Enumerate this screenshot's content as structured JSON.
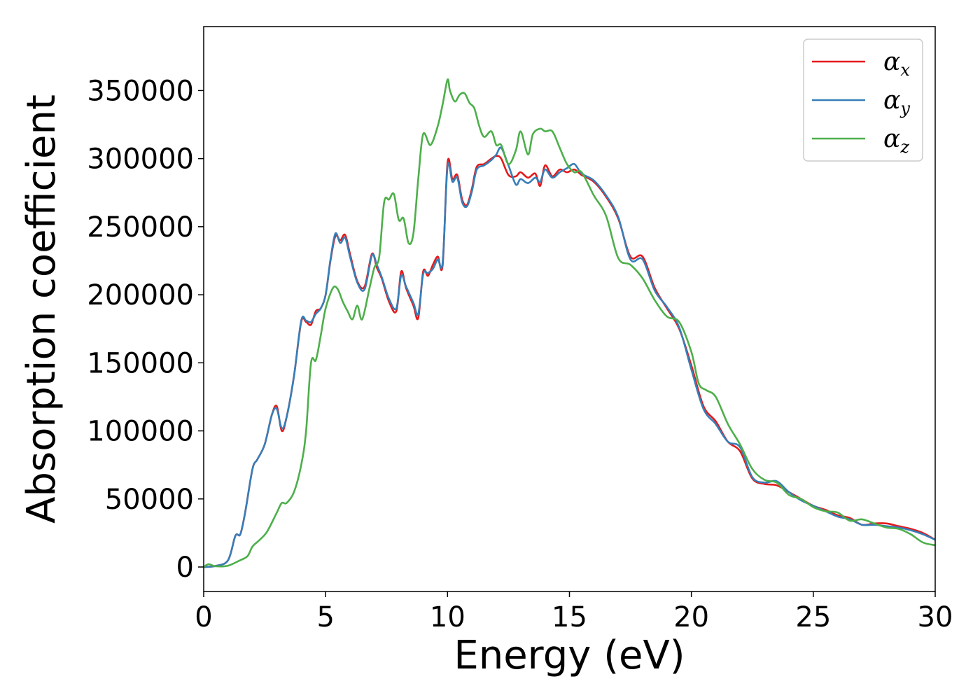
{
  "chart_data": {
    "type": "line",
    "title": "",
    "xlabel": "Energy (eV)",
    "ylabel": "Absorption coefficient",
    "xlim": [
      0,
      30
    ],
    "ylim": [
      -18000,
      397000
    ],
    "xticks": [
      0,
      5,
      10,
      15,
      20,
      25,
      30
    ],
    "yticks": [
      0,
      50000,
      100000,
      150000,
      200000,
      250000,
      300000,
      350000
    ],
    "grid": false,
    "legend_position": "top-right",
    "series": [
      {
        "name": "αx",
        "symbol": "α",
        "subscript": "x",
        "color": "#e41a1c",
        "x": [
          0,
          0.5,
          1.0,
          1.3,
          1.5,
          1.7,
          2.0,
          2.2,
          2.5,
          2.8,
          3.0,
          3.2,
          3.4,
          3.7,
          4.0,
          4.2,
          4.4,
          4.6,
          4.8,
          5.0,
          5.2,
          5.4,
          5.6,
          5.8,
          6.0,
          6.3,
          6.6,
          6.9,
          7.1,
          7.3,
          7.6,
          7.9,
          8.1,
          8.3,
          8.6,
          8.8,
          9.0,
          9.2,
          9.4,
          9.6,
          9.8,
          10.0,
          10.2,
          10.4,
          10.6,
          10.8,
          11.0,
          11.2,
          11.5,
          11.8,
          12.0,
          12.2,
          12.5,
          12.8,
          13.0,
          13.3,
          13.6,
          13.8,
          14.0,
          14.3,
          14.6,
          14.9,
          15.2,
          15.5,
          16.0,
          16.5,
          17.0,
          17.5,
          18.0,
          18.5,
          19.0,
          19.5,
          20.0,
          20.5,
          21.0,
          21.5,
          22.0,
          22.5,
          23.0,
          23.5,
          24.0,
          24.5,
          25.0,
          25.5,
          26.0,
          26.5,
          27.0,
          27.5,
          28.0,
          28.5,
          29.0,
          29.5,
          30.0
        ],
        "values": [
          0,
          800,
          5000,
          23000,
          24000,
          40000,
          72000,
          79000,
          90000,
          112000,
          118000,
          100000,
          110000,
          140000,
          180000,
          180000,
          178000,
          188000,
          190000,
          200000,
          225000,
          243000,
          240000,
          244000,
          230000,
          210000,
          206000,
          230000,
          220000,
          212000,
          195000,
          188000,
          217000,
          205000,
          192000,
          183000,
          217000,
          214000,
          222000,
          228000,
          222000,
          297000,
          285000,
          288000,
          270000,
          266000,
          278000,
          294000,
          296000,
          300000,
          302000,
          300000,
          288000,
          287000,
          290000,
          286000,
          289000,
          280000,
          295000,
          287000,
          292000,
          290000,
          292000,
          288000,
          283000,
          272000,
          256000,
          228000,
          228000,
          205000,
          190000,
          175000,
          148000,
          118000,
          107000,
          92000,
          85000,
          65000,
          61000,
          60000,
          55000,
          50000,
          45000,
          42000,
          38000,
          36000,
          31000,
          32000,
          32000,
          30000,
          28000,
          25000,
          20000
        ]
      },
      {
        "name": "αy",
        "symbol": "α",
        "subscript": "y",
        "color": "#377eb8",
        "x": [
          0,
          0.5,
          1.0,
          1.3,
          1.5,
          1.7,
          2.0,
          2.2,
          2.5,
          2.8,
          3.0,
          3.2,
          3.4,
          3.7,
          4.0,
          4.2,
          4.4,
          4.6,
          4.8,
          5.0,
          5.2,
          5.4,
          5.6,
          5.8,
          6.0,
          6.3,
          6.6,
          6.9,
          7.1,
          7.3,
          7.6,
          7.9,
          8.1,
          8.3,
          8.6,
          8.8,
          9.0,
          9.2,
          9.4,
          9.6,
          9.8,
          10.0,
          10.2,
          10.4,
          10.6,
          10.8,
          11.0,
          11.2,
          11.5,
          11.8,
          12.0,
          12.2,
          12.5,
          12.8,
          13.0,
          13.3,
          13.6,
          13.8,
          14.0,
          14.3,
          14.6,
          14.9,
          15.2,
          15.5,
          16.0,
          16.5,
          17.0,
          17.5,
          18.0,
          18.5,
          19.0,
          19.5,
          20.0,
          20.5,
          21.0,
          21.5,
          22.0,
          22.5,
          23.0,
          23.5,
          24.0,
          24.5,
          25.0,
          25.5,
          26.0,
          26.5,
          27.0,
          27.5,
          28.0,
          28.5,
          29.0,
          29.5,
          30.0
        ],
        "values": [
          0,
          800,
          5000,
          23000,
          24000,
          40000,
          72000,
          79000,
          90000,
          112000,
          116000,
          102000,
          110000,
          140000,
          181000,
          181000,
          180000,
          186000,
          190000,
          200000,
          226000,
          245000,
          238000,
          242000,
          228000,
          209000,
          204000,
          229000,
          222000,
          213000,
          197000,
          190000,
          214000,
          206000,
          194000,
          186000,
          215000,
          216000,
          219000,
          226000,
          224000,
          294000,
          283000,
          286000,
          268000,
          265000,
          276000,
          292000,
          295000,
          299000,
          303000,
          308000,
          295000,
          281000,
          285000,
          282000,
          286000,
          283000,
          292000,
          286000,
          290000,
          293000,
          296000,
          289000,
          284000,
          273000,
          257000,
          226000,
          226000,
          203000,
          191000,
          176000,
          145000,
          116000,
          105000,
          92000,
          88000,
          66000,
          62000,
          63000,
          55000,
          49000,
          45000,
          41000,
          37000,
          35000,
          31000,
          31000,
          30000,
          29000,
          27000,
          24000,
          20000
        ]
      },
      {
        "name": "αz",
        "symbol": "α",
        "subscript": "z",
        "color": "#4daf4a",
        "x": [
          0,
          0.2,
          0.5,
          1.0,
          1.5,
          1.8,
          2.0,
          2.3,
          2.6,
          3.0,
          3.2,
          3.4,
          3.7,
          4.0,
          4.2,
          4.4,
          4.6,
          4.8,
          5.0,
          5.3,
          5.5,
          5.7,
          5.9,
          6.1,
          6.3,
          6.5,
          6.8,
          7.0,
          7.2,
          7.4,
          7.6,
          7.8,
          8.0,
          8.2,
          8.4,
          8.6,
          8.8,
          9.0,
          9.3,
          9.6,
          9.8,
          10.0,
          10.1,
          10.3,
          10.5,
          10.7,
          10.9,
          11.1,
          11.3,
          11.5,
          11.8,
          12.0,
          12.2,
          12.5,
          12.8,
          13.0,
          13.3,
          13.5,
          13.8,
          14.0,
          14.3,
          14.6,
          14.9,
          15.2,
          15.5,
          16.0,
          16.5,
          17.0,
          17.5,
          18.0,
          18.5,
          19.0,
          19.5,
          20.0,
          20.3,
          20.6,
          21.0,
          21.5,
          22.0,
          22.5,
          23.0,
          23.5,
          24.0,
          24.5,
          25.0,
          25.5,
          26.0,
          26.5,
          27.0,
          27.5,
          28.0,
          28.5,
          29.0,
          29.5,
          30.0
        ],
        "values": [
          0,
          2000,
          500,
          1000,
          5000,
          8000,
          15000,
          20000,
          26000,
          40000,
          47000,
          47000,
          55000,
          75000,
          100000,
          150000,
          152000,
          170000,
          190000,
          205000,
          204000,
          195000,
          188000,
          182000,
          192000,
          182000,
          205000,
          220000,
          228000,
          268000,
          270000,
          274000,
          255000,
          256000,
          238000,
          245000,
          285000,
          318000,
          310000,
          324000,
          340000,
          358000,
          350000,
          342000,
          347000,
          348000,
          341000,
          337000,
          324000,
          316000,
          320000,
          310000,
          310000,
          296000,
          306000,
          320000,
          303000,
          318000,
          322000,
          320000,
          320000,
          308000,
          296000,
          290000,
          290000,
          273000,
          258000,
          227000,
          222000,
          212000,
          196000,
          184000,
          180000,
          158000,
          135000,
          130000,
          125000,
          105000,
          90000,
          72000,
          64000,
          62000,
          53000,
          50000,
          44000,
          41000,
          40000,
          34000,
          35000,
          32000,
          29000,
          28000,
          24000,
          18000,
          16000
        ]
      }
    ]
  }
}
